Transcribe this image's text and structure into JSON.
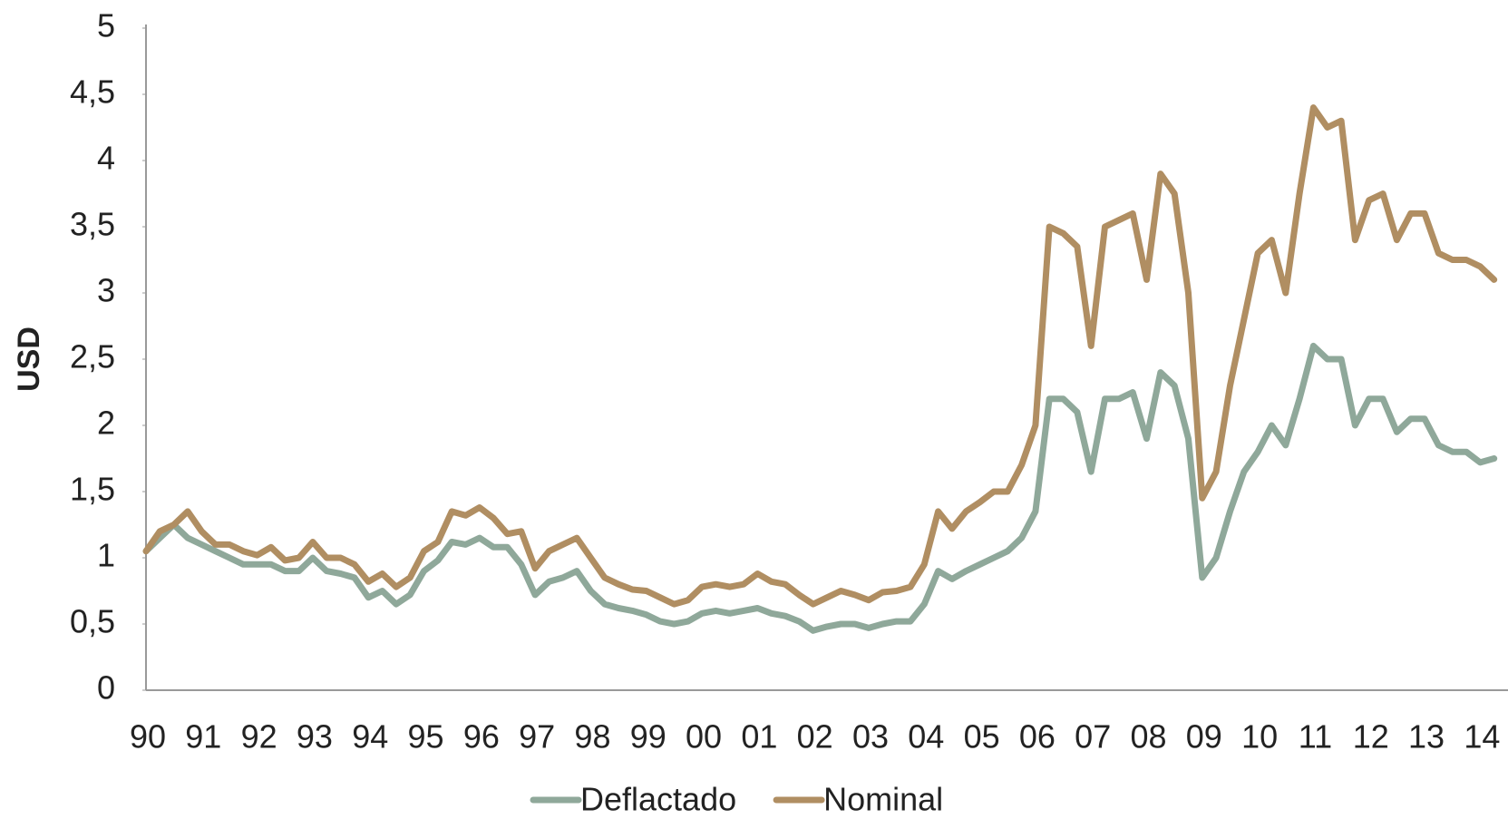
{
  "chart_data": {
    "type": "line",
    "y_label": "USD",
    "categories": [
      "90",
      null,
      null,
      null,
      "91",
      null,
      null,
      null,
      "92",
      null,
      null,
      null,
      "93",
      null,
      null,
      null,
      "94",
      null,
      null,
      null,
      "95",
      null,
      null,
      null,
      "96",
      null,
      null,
      null,
      "97",
      null,
      null,
      null,
      "98",
      null,
      null,
      null,
      "99",
      null,
      null,
      null,
      "00",
      null,
      null,
      null,
      "01",
      null,
      null,
      null,
      "02",
      null,
      null,
      null,
      "03",
      null,
      null,
      null,
      "04",
      null,
      null,
      null,
      "05",
      null,
      null,
      null,
      "06",
      null,
      null,
      null,
      "07",
      null,
      null,
      null,
      "08",
      null,
      null,
      null,
      "09",
      null,
      null,
      null,
      "10",
      null,
      null,
      null,
      "11",
      null,
      null,
      null,
      "12",
      null,
      null,
      null,
      "13",
      null,
      null,
      null,
      "14",
      null
    ],
    "series": [
      {
        "name": "Deflactado",
        "color": "#8fa89a",
        "values": [
          1.05,
          1.15,
          1.25,
          1.15,
          1.1,
          1.05,
          1.0,
          0.95,
          0.95,
          0.95,
          0.9,
          0.9,
          1.0,
          0.9,
          0.88,
          0.85,
          0.7,
          0.75,
          0.65,
          0.72,
          0.9,
          0.98,
          1.12,
          1.1,
          1.15,
          1.08,
          1.08,
          0.95,
          0.72,
          0.82,
          0.85,
          0.9,
          0.75,
          0.65,
          0.62,
          0.6,
          0.57,
          0.52,
          0.5,
          0.52,
          0.58,
          0.6,
          0.58,
          0.6,
          0.62,
          0.58,
          0.56,
          0.52,
          0.45,
          0.48,
          0.5,
          0.5,
          0.47,
          0.5,
          0.52,
          0.52,
          0.65,
          0.9,
          0.84,
          0.9,
          0.95,
          1.0,
          1.05,
          1.15,
          1.35,
          2.2,
          2.2,
          2.1,
          1.65,
          2.2,
          2.2,
          2.25,
          1.9,
          2.4,
          2.3,
          1.9,
          0.85,
          1.0,
          1.35,
          1.65,
          1.8,
          2.0,
          1.85,
          2.2,
          2.6,
          2.5,
          2.5,
          2.0,
          2.2,
          2.2,
          1.95,
          2.05,
          2.05,
          1.85,
          1.8,
          1.8,
          1.72,
          1.75
        ]
      },
      {
        "name": "Nominal",
        "color": "#b08e62",
        "values": [
          1.05,
          1.2,
          1.25,
          1.35,
          1.2,
          1.1,
          1.1,
          1.05,
          1.02,
          1.08,
          0.98,
          1.0,
          1.12,
          1.0,
          1.0,
          0.95,
          0.82,
          0.88,
          0.78,
          0.85,
          1.05,
          1.12,
          1.35,
          1.32,
          1.38,
          1.3,
          1.18,
          1.2,
          0.92,
          1.05,
          1.1,
          1.15,
          1.0,
          0.85,
          0.8,
          0.76,
          0.75,
          0.7,
          0.65,
          0.68,
          0.78,
          0.8,
          0.78,
          0.8,
          0.88,
          0.82,
          0.8,
          0.72,
          0.65,
          0.7,
          0.75,
          0.72,
          0.68,
          0.74,
          0.75,
          0.78,
          0.95,
          1.35,
          1.22,
          1.35,
          1.42,
          1.5,
          1.5,
          1.7,
          2.0,
          3.5,
          3.45,
          3.35,
          2.6,
          3.5,
          3.55,
          3.6,
          3.1,
          3.9,
          3.75,
          3.0,
          1.45,
          1.65,
          2.3,
          2.8,
          3.3,
          3.4,
          3.0,
          3.75,
          4.4,
          4.25,
          4.3,
          3.4,
          3.7,
          3.75,
          3.4,
          3.6,
          3.6,
          3.3,
          3.25,
          3.25,
          3.2,
          3.1
        ]
      }
    ],
    "ylim": [
      0,
      5
    ],
    "yticks": [
      0,
      {
        "value": 0.5,
        "label": "0,5"
      },
      1,
      {
        "value": 1.5,
        "label": "1,5"
      },
      2,
      {
        "value": 2.5,
        "label": "2,5"
      },
      3,
      {
        "value": 3.5,
        "label": "3,5"
      },
      4,
      {
        "value": 4.5,
        "label": "4,5"
      },
      5
    ],
    "grid": false,
    "legend": "bottom"
  }
}
